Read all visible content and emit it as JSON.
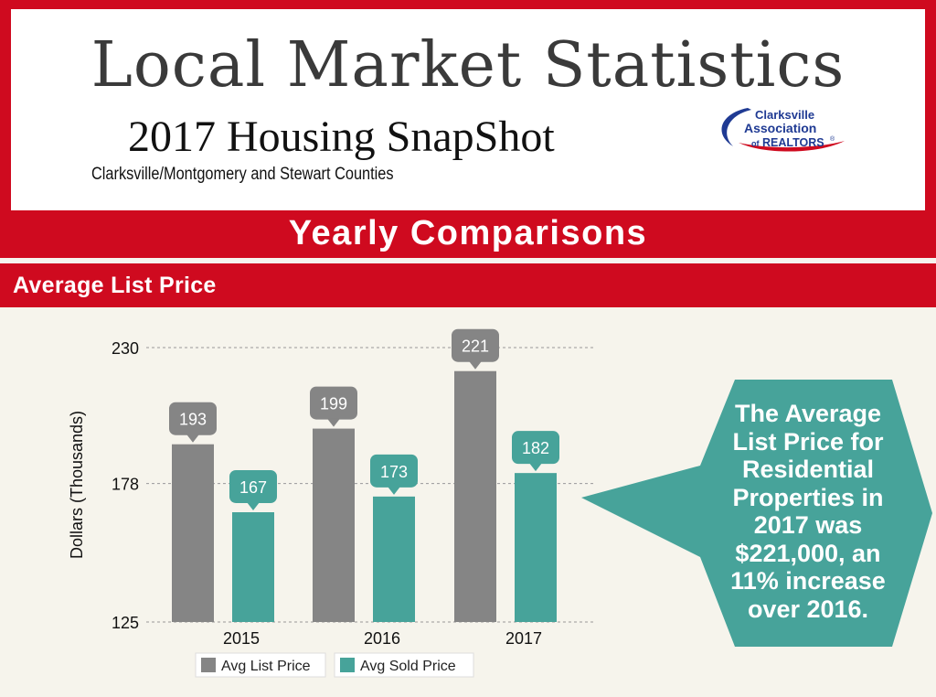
{
  "header": {
    "title": "Local Market Statistics",
    "subtitle": "2017 Housing SnapShot",
    "region": "Clarksville/Montgomery and Stewart Counties",
    "logo": {
      "line1": "Clarksville",
      "line2": "Association",
      "line3_prefix": "of",
      "line3": "REALTORS",
      "mark": "®"
    }
  },
  "band_title": "Yearly Comparisons",
  "section_label": "Average List Price",
  "colors": {
    "red": "#cf0a1f",
    "gray": "#858585",
    "teal": "#47a39a",
    "background": "#f6f4ec"
  },
  "chart_data": {
    "type": "bar",
    "categories": [
      "2015",
      "2016",
      "2017"
    ],
    "series": [
      {
        "name": "Avg List Price",
        "values": [
          193,
          199,
          221
        ],
        "color": "#858585"
      },
      {
        "name": "Avg Sold Price",
        "values": [
          167,
          173,
          182
        ],
        "color": "#47a39a"
      }
    ],
    "ylabel": "Dollars (Thousands)",
    "yticks": [
      125,
      178,
      230
    ],
    "ylim": [
      125,
      230
    ],
    "grid": true,
    "legend": "bottom",
    "data_labels": true
  },
  "callout": {
    "lines": [
      "The Average",
      "List Price for",
      "Residential",
      "Properties in",
      "2017 was",
      "$221,000, an",
      "11% increase",
      "over 2016."
    ]
  }
}
